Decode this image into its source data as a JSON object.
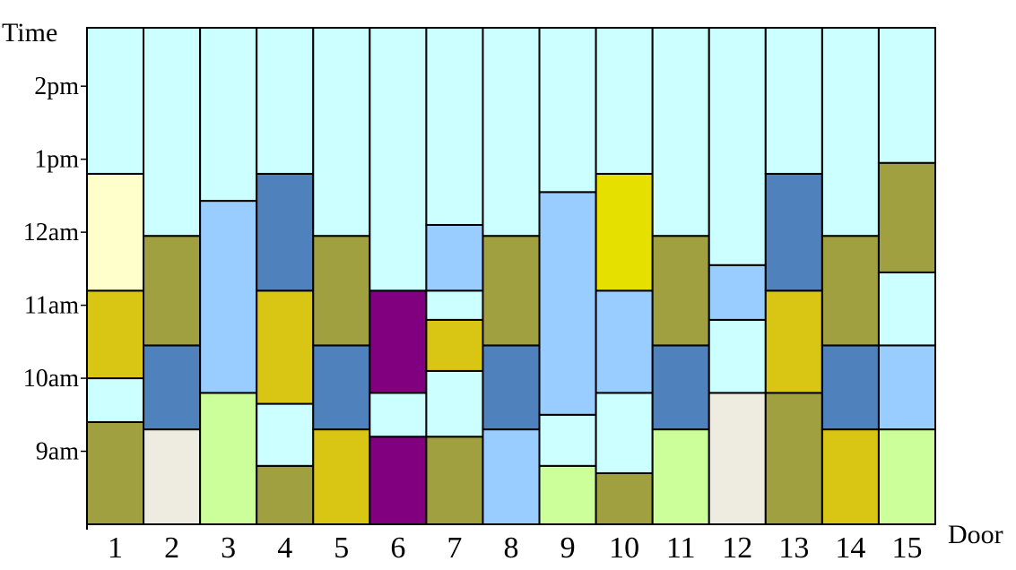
{
  "chart_data": {
    "type": "stacked_bar",
    "ylabel": "Time",
    "xlabel": "Door",
    "categories": [
      "1",
      "2",
      "3",
      "4",
      "5",
      "6",
      "7",
      "8",
      "9",
      "10",
      "11",
      "12",
      "13",
      "14",
      "15"
    ],
    "y_ticks": [
      {
        "label": "9am",
        "value": 9.0
      },
      {
        "label": "10am",
        "value": 10.0
      },
      {
        "label": "11am",
        "value": 11.0
      },
      {
        "label": "12am",
        "value": 12.0
      },
      {
        "label": "1pm",
        "value": 13.0
      },
      {
        "label": "2pm",
        "value": 14.0
      }
    ],
    "ylim": [
      8.0,
      14.8
    ],
    "colors": {
      "light_cyan": "#ccffff",
      "olive": "#a0a040",
      "blue": "#4f81bd",
      "light_blue": "#99ccff",
      "gold": "#d8c514",
      "yellow": "#e6e000",
      "light_yellow": "#ffffcc",
      "light_green": "#ccff99",
      "beige": "#eeebe0",
      "purple": "#800080"
    },
    "bars": [
      {
        "door": "1",
        "segments": [
          {
            "from": 8.0,
            "to": 9.4,
            "color": "olive"
          },
          {
            "from": 9.4,
            "to": 10.0,
            "color": "light_cyan"
          },
          {
            "from": 10.0,
            "to": 11.2,
            "color": "gold"
          },
          {
            "from": 11.2,
            "to": 12.8,
            "color": "light_yellow"
          },
          {
            "from": 12.8,
            "to": 14.8,
            "color": "light_cyan"
          }
        ]
      },
      {
        "door": "2",
        "segments": [
          {
            "from": 8.0,
            "to": 9.3,
            "color": "beige"
          },
          {
            "from": 9.3,
            "to": 10.45,
            "color": "blue"
          },
          {
            "from": 10.45,
            "to": 11.95,
            "color": "olive"
          },
          {
            "from": 11.95,
            "to": 14.8,
            "color": "light_cyan"
          }
        ]
      },
      {
        "door": "3",
        "segments": [
          {
            "from": 8.0,
            "to": 9.8,
            "color": "light_green"
          },
          {
            "from": 9.8,
            "to": 12.43,
            "color": "light_blue"
          },
          {
            "from": 12.43,
            "to": 14.8,
            "color": "light_cyan"
          }
        ]
      },
      {
        "door": "4",
        "segments": [
          {
            "from": 8.0,
            "to": 8.8,
            "color": "olive"
          },
          {
            "from": 8.8,
            "to": 9.65,
            "color": "light_cyan"
          },
          {
            "from": 9.65,
            "to": 11.2,
            "color": "gold"
          },
          {
            "from": 11.2,
            "to": 12.8,
            "color": "blue"
          },
          {
            "from": 12.8,
            "to": 14.8,
            "color": "light_cyan"
          }
        ]
      },
      {
        "door": "5",
        "segments": [
          {
            "from": 8.0,
            "to": 9.3,
            "color": "gold"
          },
          {
            "from": 9.3,
            "to": 10.45,
            "color": "blue"
          },
          {
            "from": 10.45,
            "to": 11.95,
            "color": "olive"
          },
          {
            "from": 11.95,
            "to": 14.8,
            "color": "light_cyan"
          }
        ]
      },
      {
        "door": "6",
        "segments": [
          {
            "from": 8.0,
            "to": 9.2,
            "color": "purple"
          },
          {
            "from": 9.2,
            "to": 9.8,
            "color": "light_cyan"
          },
          {
            "from": 9.8,
            "to": 11.2,
            "color": "purple"
          },
          {
            "from": 11.2,
            "to": 14.8,
            "color": "light_cyan"
          }
        ]
      },
      {
        "door": "7",
        "segments": [
          {
            "from": 8.0,
            "to": 9.2,
            "color": "olive"
          },
          {
            "from": 9.2,
            "to": 10.1,
            "color": "light_cyan"
          },
          {
            "from": 10.1,
            "to": 10.8,
            "color": "gold"
          },
          {
            "from": 10.8,
            "to": 11.2,
            "color": "light_cyan"
          },
          {
            "from": 11.2,
            "to": 12.1,
            "color": "light_blue"
          },
          {
            "from": 12.1,
            "to": 14.8,
            "color": "light_cyan"
          }
        ]
      },
      {
        "door": "8",
        "segments": [
          {
            "from": 8.0,
            "to": 9.3,
            "color": "light_blue"
          },
          {
            "from": 9.3,
            "to": 10.45,
            "color": "blue"
          },
          {
            "from": 10.45,
            "to": 11.95,
            "color": "olive"
          },
          {
            "from": 11.95,
            "to": 14.8,
            "color": "light_cyan"
          }
        ]
      },
      {
        "door": "9",
        "segments": [
          {
            "from": 8.0,
            "to": 8.8,
            "color": "light_green"
          },
          {
            "from": 8.8,
            "to": 9.5,
            "color": "light_cyan"
          },
          {
            "from": 9.5,
            "to": 12.55,
            "color": "light_blue"
          },
          {
            "from": 12.55,
            "to": 14.8,
            "color": "light_cyan"
          }
        ]
      },
      {
        "door": "10",
        "segments": [
          {
            "from": 8.0,
            "to": 8.7,
            "color": "olive"
          },
          {
            "from": 8.7,
            "to": 9.8,
            "color": "light_cyan"
          },
          {
            "from": 9.8,
            "to": 11.2,
            "color": "light_blue"
          },
          {
            "from": 11.2,
            "to": 12.8,
            "color": "yellow"
          },
          {
            "from": 12.8,
            "to": 14.8,
            "color": "light_cyan"
          }
        ]
      },
      {
        "door": "11",
        "segments": [
          {
            "from": 8.0,
            "to": 9.3,
            "color": "light_green"
          },
          {
            "from": 9.3,
            "to": 10.45,
            "color": "blue"
          },
          {
            "from": 10.45,
            "to": 11.95,
            "color": "olive"
          },
          {
            "from": 11.95,
            "to": 14.8,
            "color": "light_cyan"
          }
        ]
      },
      {
        "door": "12",
        "segments": [
          {
            "from": 8.0,
            "to": 9.8,
            "color": "beige"
          },
          {
            "from": 9.8,
            "to": 10.8,
            "color": "light_cyan"
          },
          {
            "from": 10.8,
            "to": 11.55,
            "color": "light_blue"
          },
          {
            "from": 11.55,
            "to": 14.8,
            "color": "light_cyan"
          }
        ]
      },
      {
        "door": "13",
        "segments": [
          {
            "from": 8.0,
            "to": 9.8,
            "color": "olive"
          },
          {
            "from": 9.8,
            "to": 11.2,
            "color": "gold"
          },
          {
            "from": 11.2,
            "to": 12.8,
            "color": "blue"
          },
          {
            "from": 12.8,
            "to": 14.8,
            "color": "light_cyan"
          }
        ]
      },
      {
        "door": "14",
        "segments": [
          {
            "from": 8.0,
            "to": 9.3,
            "color": "gold"
          },
          {
            "from": 9.3,
            "to": 10.45,
            "color": "blue"
          },
          {
            "from": 10.45,
            "to": 11.95,
            "color": "olive"
          },
          {
            "from": 11.95,
            "to": 14.8,
            "color": "light_cyan"
          }
        ]
      },
      {
        "door": "15",
        "segments": [
          {
            "from": 8.0,
            "to": 9.3,
            "color": "light_green"
          },
          {
            "from": 9.3,
            "to": 10.45,
            "color": "light_blue"
          },
          {
            "from": 10.45,
            "to": 11.45,
            "color": "light_cyan"
          },
          {
            "from": 11.45,
            "to": 12.95,
            "color": "olive"
          },
          {
            "from": 12.95,
            "to": 14.8,
            "color": "light_cyan"
          }
        ]
      }
    ]
  }
}
